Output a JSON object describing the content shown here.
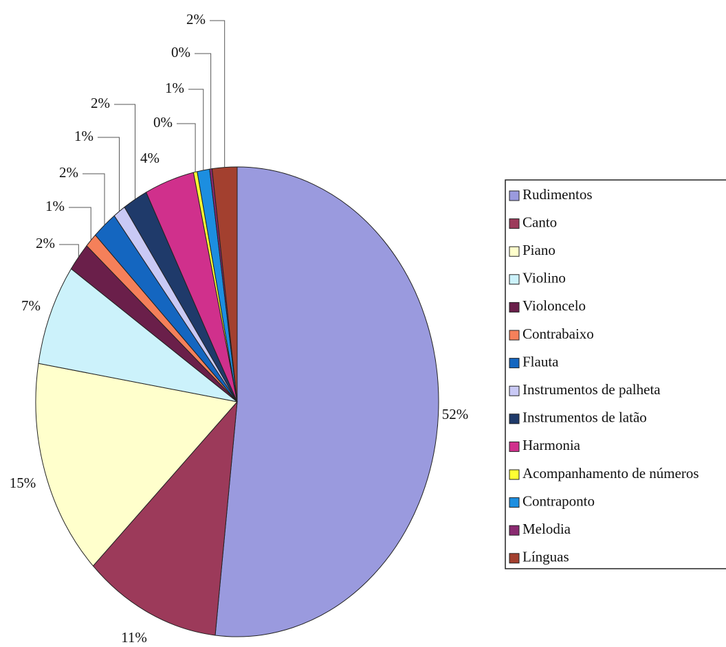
{
  "chart_data": {
    "type": "pie",
    "categories": [
      "Rudimentos",
      "Canto",
      "Piano",
      "Violino",
      "Violoncelo",
      "Contrabaixo",
      "Flauta",
      "Instrumentos de palheta",
      "Instrumentos de latão",
      "Harmonia",
      "Acompanhamento de números",
      "Contraponto",
      "Melodia",
      "Línguas"
    ],
    "values": [
      52,
      11,
      15,
      7,
      2,
      1,
      2,
      1,
      2,
      4,
      0.3,
      1,
      0.2,
      2
    ],
    "value_labels": [
      "52%",
      "11%",
      "15%",
      "7%",
      "2%",
      "1%",
      "2%",
      "1%",
      "2%",
      "4%",
      "0%",
      "1%",
      "0%",
      "2%"
    ],
    "colors": [
      "#9a9ade",
      "#9c3a5a",
      "#ffffcc",
      "#ccf2fb",
      "#6a1f4a",
      "#f5805a",
      "#1466c0",
      "#c9c9f5",
      "#1f3a6a",
      "#d0308c",
      "#ffff33",
      "#1c8ee0",
      "#8a2a70",
      "#a3402f"
    ],
    "legend": "right"
  }
}
